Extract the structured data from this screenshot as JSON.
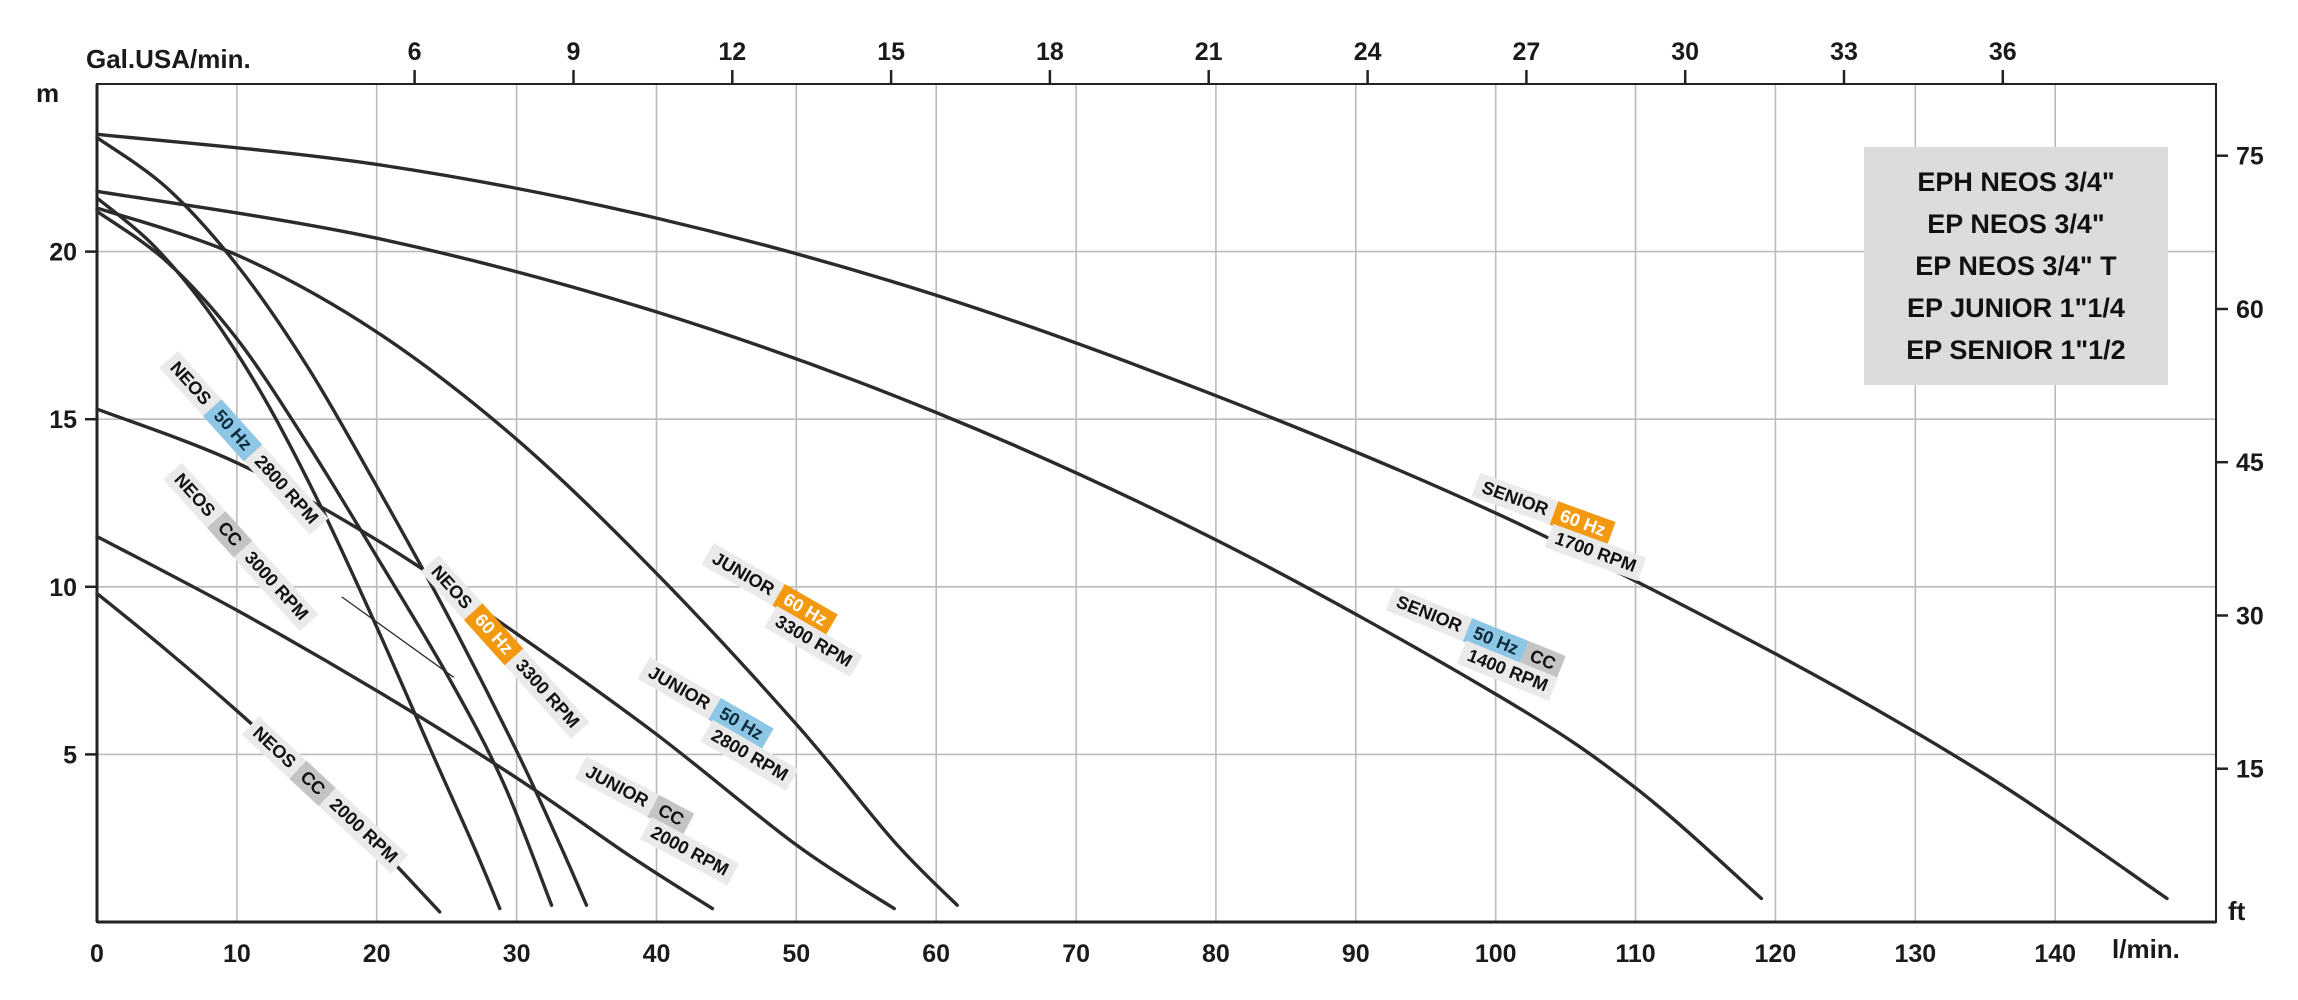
{
  "axes": {
    "top_label": "Gal.USA/min.",
    "left_unit": "m",
    "right_unit": "ft",
    "bottom_unit": "l/min."
  },
  "legend": {
    "items": [
      "EPH NEOS 3/4\"",
      "EP NEOS 3/4\"",
      "EP NEOS 3/4\" T",
      "EP JUNIOR 1\"1/4",
      "EP SENIOR 1\"1/2"
    ]
  },
  "colors": {
    "curve": "#2b2b2b",
    "grid": "#bbbbbb",
    "axis": "#222222",
    "chip_plain": "#eaeaea",
    "chip_blue": "#8ec6e6",
    "chip_orange": "#f2990f",
    "chip_gray": "#c4c4c4",
    "legend_bg": "#dcdcdc",
    "text": "#1a1a1a"
  },
  "chart_data": {
    "type": "line",
    "xlabel": "l/min.",
    "x2label": "Gal.USA/min.",
    "ylabel": "m",
    "y2label": "ft",
    "xlim": [
      0,
      151.5
    ],
    "ylim": [
      0,
      25
    ],
    "grid": true,
    "gal_to_lmin": 3.785,
    "ft_to_m": 0.3048,
    "x_ticks_bottom": [
      0,
      10,
      20,
      30,
      40,
      50,
      60,
      70,
      80,
      90,
      100,
      110,
      120,
      130,
      140
    ],
    "x_ticks_top_gal": [
      6,
      9,
      12,
      15,
      18,
      21,
      24,
      27,
      30,
      33,
      36
    ],
    "y_ticks_left_m": [
      5,
      10,
      15,
      20
    ],
    "y_ticks_right_ft": [
      15,
      30,
      45,
      60,
      75
    ],
    "leader_line": {
      "from": [
        17.5,
        9.7
      ],
      "to": [
        25.5,
        7.3
      ]
    },
    "series": [
      {
        "id": "neos-50hz-2800",
        "name": "NEOS 50 Hz 2800 RPM",
        "label_anchor": [
          10.5,
          14.3
        ],
        "label_angle": 48,
        "label_rows": [
          [
            {
              "text": "NEOS",
              "style": "plain"
            },
            {
              "text": "50 Hz",
              "style": "blue"
            },
            {
              "text": "2800 RPM",
              "style": "plain"
            }
          ]
        ],
        "points": [
          [
            0,
            21.6
          ],
          [
            4,
            20.2
          ],
          [
            8,
            18.2
          ],
          [
            12,
            15.6
          ],
          [
            16,
            12.4
          ],
          [
            20,
            8.8
          ],
          [
            24,
            5.0
          ],
          [
            27,
            2.2
          ],
          [
            28.8,
            0.4
          ]
        ]
      },
      {
        "id": "neos-cc-3000",
        "name": "NEOS CC 3000 RPM",
        "label_anchor": [
          10.3,
          11.2
        ],
        "label_angle": 48,
        "label_rows": [
          [
            {
              "text": "NEOS",
              "style": "plain"
            },
            {
              "text": "CC",
              "style": "gray"
            },
            {
              "text": "3000 RPM",
              "style": "plain"
            }
          ]
        ],
        "points": [
          [
            0,
            21.2
          ],
          [
            5,
            19.7
          ],
          [
            10,
            17.4
          ],
          [
            15,
            14.3
          ],
          [
            20,
            10.9
          ],
          [
            25,
            7.4
          ],
          [
            29,
            4.2
          ],
          [
            32.5,
            0.5
          ]
        ]
      },
      {
        "id": "neos-60hz-3300",
        "name": "NEOS 60 Hz 3300 RPM",
        "label_anchor": [
          29.2,
          8.2
        ],
        "label_angle": 48,
        "label_rows": [
          [
            {
              "text": "NEOS",
              "style": "plain"
            },
            {
              "text": "60 Hz",
              "style": "orange"
            },
            {
              "text": "3300 RPM",
              "style": "plain"
            }
          ]
        ],
        "points": [
          [
            0,
            23.4
          ],
          [
            5,
            21.9
          ],
          [
            10,
            19.6
          ],
          [
            15,
            16.6
          ],
          [
            20,
            13.0
          ],
          [
            25,
            9.2
          ],
          [
            30,
            5.1
          ],
          [
            33,
            2.4
          ],
          [
            35,
            0.5
          ]
        ]
      },
      {
        "id": "neos-cc-2000",
        "name": "NEOS CC 2000 RPM",
        "label_anchor": [
          16.3,
          3.8
        ],
        "label_angle": 43,
        "label_rows": [
          [
            {
              "text": "NEOS",
              "style": "plain"
            },
            {
              "text": "CC",
              "style": "gray"
            },
            {
              "text": "2000 RPM",
              "style": "plain"
            }
          ]
        ],
        "points": [
          [
            0,
            9.8
          ],
          [
            5,
            8.1
          ],
          [
            10,
            6.3
          ],
          [
            15,
            4.4
          ],
          [
            20,
            2.3
          ],
          [
            24.5,
            0.3
          ]
        ]
      },
      {
        "id": "junior-60hz-3300",
        "name": "JUNIOR 60 Hz 3300 RPM",
        "label_anchor": [
          49.0,
          9.3
        ],
        "label_angle": 30,
        "label_rows": [
          [
            {
              "text": "JUNIOR",
              "style": "plain"
            },
            {
              "text": "60 Hz",
              "style": "orange"
            }
          ],
          [
            {
              "text": "3300 RPM",
              "style": "plain"
            }
          ]
        ],
        "points": [
          [
            0,
            21.3
          ],
          [
            10,
            19.9
          ],
          [
            20,
            17.6
          ],
          [
            30,
            14.4
          ],
          [
            40,
            10.4
          ],
          [
            50,
            5.9
          ],
          [
            57,
            2.4
          ],
          [
            61.5,
            0.5
          ]
        ]
      },
      {
        "id": "junior-50hz-2800",
        "name": "JUNIOR 50 Hz 2800 RPM",
        "label_anchor": [
          44.4,
          5.9
        ],
        "label_angle": 30,
        "label_rows": [
          [
            {
              "text": "JUNIOR",
              "style": "plain"
            },
            {
              "text": "50 Hz",
              "style": "blue"
            }
          ],
          [
            {
              "text": "2800 RPM",
              "style": "plain"
            }
          ]
        ],
        "points": [
          [
            0,
            15.3
          ],
          [
            10,
            13.7
          ],
          [
            20,
            11.4
          ],
          [
            30,
            8.6
          ],
          [
            40,
            5.6
          ],
          [
            50,
            2.3
          ],
          [
            57,
            0.4
          ]
        ]
      },
      {
        "id": "junior-cc-2000",
        "name": "JUNIOR CC 2000 RPM",
        "label_anchor": [
          40.0,
          3.0
        ],
        "label_angle": 28,
        "label_rows": [
          [
            {
              "text": "JUNIOR",
              "style": "plain"
            },
            {
              "text": "CC",
              "style": "gray"
            }
          ],
          [
            {
              "text": "2000 RPM",
              "style": "plain"
            }
          ]
        ],
        "points": [
          [
            0,
            11.5
          ],
          [
            10,
            9.3
          ],
          [
            20,
            6.9
          ],
          [
            30,
            4.3
          ],
          [
            38,
            2.0
          ],
          [
            44,
            0.4
          ]
        ]
      },
      {
        "id": "senior-60hz-1700",
        "name": "SENIOR 60 Hz 1700 RPM",
        "label_anchor": [
          104.5,
          11.8
        ],
        "label_angle": 20,
        "label_rows": [
          [
            {
              "text": "SENIOR",
              "style": "plain"
            },
            {
              "text": "60 Hz",
              "style": "orange"
            }
          ],
          [
            {
              "text": "1700 RPM",
              "style": "plain"
            }
          ]
        ],
        "points": [
          [
            0,
            23.5
          ],
          [
            20,
            22.6
          ],
          [
            40,
            21.0
          ],
          [
            60,
            18.7
          ],
          [
            80,
            15.7
          ],
          [
            100,
            12.2
          ],
          [
            120,
            8.0
          ],
          [
            135,
            4.4
          ],
          [
            148,
            0.7
          ]
        ]
      },
      {
        "id": "senior-50hz-cc-1400",
        "name": "SENIOR 50 Hz CC 1400 RPM",
        "label_anchor": [
          98.3,
          8.3
        ],
        "label_angle": 22,
        "label_rows": [
          [
            {
              "text": "SENIOR",
              "style": "plain"
            },
            {
              "text": "50 Hz",
              "style": "blue"
            },
            {
              "text": "CC",
              "style": "gray"
            }
          ],
          [
            {
              "text": "1400 RPM",
              "style": "plain"
            }
          ]
        ],
        "points": [
          [
            0,
            21.8
          ],
          [
            20,
            20.4
          ],
          [
            40,
            18.2
          ],
          [
            60,
            15.2
          ],
          [
            80,
            11.4
          ],
          [
            100,
            6.8
          ],
          [
            110,
            4.0
          ],
          [
            119,
            0.7
          ]
        ]
      }
    ]
  }
}
